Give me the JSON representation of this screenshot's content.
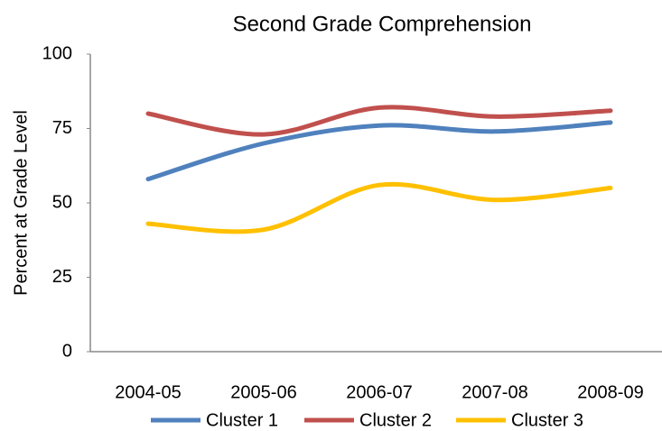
{
  "chart_data": {
    "type": "line",
    "title": "Second Grade Comprehension",
    "y_label": "Percent at Grade Level",
    "categories": [
      "2004-05",
      "2005-06",
      "2006-07",
      "2007-08",
      "2008-09"
    ],
    "series": [
      {
        "name": "Cluster 1",
        "color": "#4f81bd",
        "values": [
          58,
          70,
          76,
          74,
          77
        ]
      },
      {
        "name": "Cluster 2",
        "color": "#c0504d",
        "values": [
          80,
          73,
          82,
          79,
          81
        ]
      },
      {
        "name": "Cluster 3",
        "color": "#ffc000",
        "values": [
          43,
          41,
          56,
          51,
          55
        ]
      }
    ],
    "ylim": [
      0,
      100
    ],
    "yticks": [
      0,
      25,
      50,
      75,
      100
    ],
    "smooth": true,
    "legend": "bottom"
  }
}
